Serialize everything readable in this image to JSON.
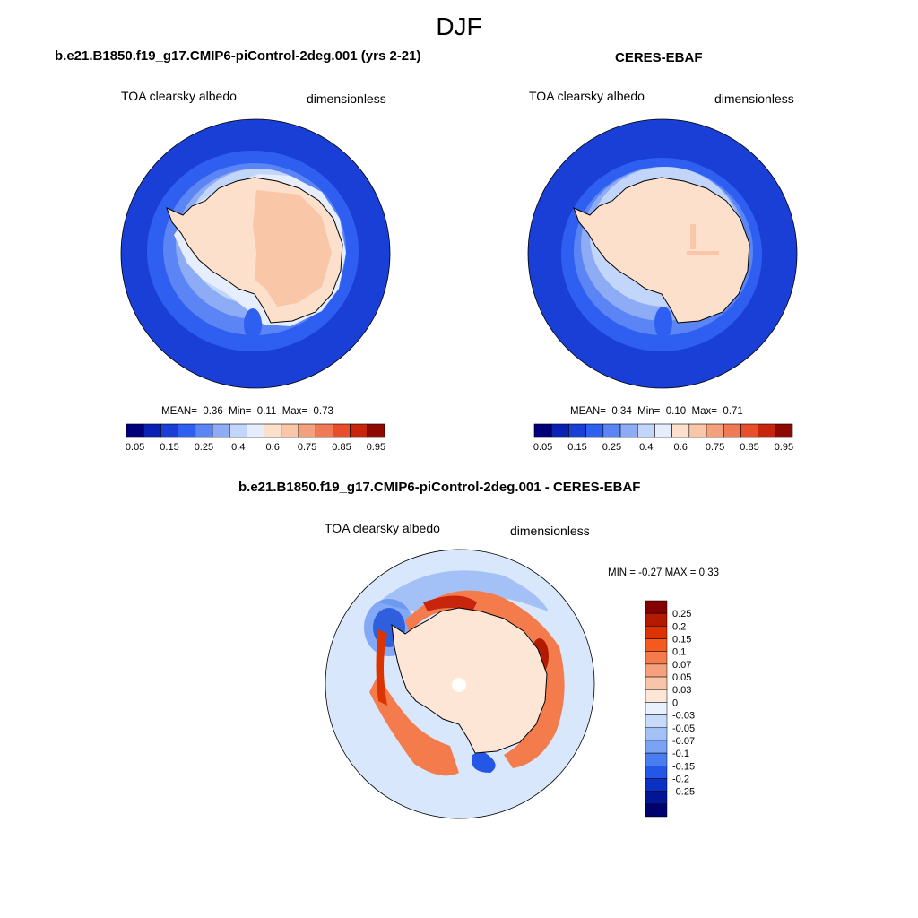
{
  "figure": {
    "title": "DJF"
  },
  "panels": [
    {
      "title": "b.e21.B1850.f19_g17.CMIP6-piControl-2deg.001 (yrs 2-21)",
      "left_label": "TOA clearsky albedo",
      "right_label": "dimensionless",
      "stats": {
        "mean_label": "MEAN=",
        "mean": "0.36",
        "min_label": "Min=",
        "min": "0.11",
        "max_label": "Max=",
        "max": "0.73"
      }
    },
    {
      "title": "CERES-EBAF",
      "left_label": "TOA clearsky albedo",
      "right_label": "dimensionless",
      "stats": {
        "mean_label": "MEAN=",
        "mean": "0.34",
        "min_label": "Min=",
        "min": "0.10",
        "max_label": "Max=",
        "max": "0.71"
      }
    },
    {
      "title": "b.e21.B1850.f19_g17.CMIP6-piControl-2deg.001 - CERES-EBAF",
      "left_label": "TOA clearsky albedo",
      "right_label": "dimensionless",
      "stats_text": "MIN =  -0.27 MAX =   0.33"
    }
  ],
  "colorbar_abs": {
    "colors": [
      "#00007a",
      "#0a22b4",
      "#1a3fd6",
      "#2f5ff0",
      "#5b84f4",
      "#8eacf6",
      "#c2d5fa",
      "#e6eefd",
      "#fce0cc",
      "#fac6a8",
      "#f5a07c",
      "#f07a55",
      "#e84e2c",
      "#c8260c",
      "#8e0a00"
    ],
    "labels": [
      "0.05",
      "0.15",
      "0.25",
      "0.4",
      "0.6",
      "0.75",
      "0.85",
      "0.95"
    ]
  },
  "colorbar_diff": {
    "colors": [
      "#840000",
      "#b21b00",
      "#dc3400",
      "#f45a1e",
      "#f47c4c",
      "#f6a07c",
      "#f9c5a9",
      "#fde6d6",
      "#e8f1fd",
      "#c7dafa",
      "#a3c1f7",
      "#7ba3f3",
      "#4a7ef0",
      "#2457e6",
      "#0b31c4",
      "#001697",
      "#00006e"
    ],
    "labels": [
      "0.25",
      "0.2",
      "0.15",
      "0.1",
      "0.07",
      "0.05",
      "0.03",
      "0",
      "-0.03",
      "-0.05",
      "-0.07",
      "-0.1",
      "-0.15",
      "-0.2",
      "-0.25"
    ]
  }
}
